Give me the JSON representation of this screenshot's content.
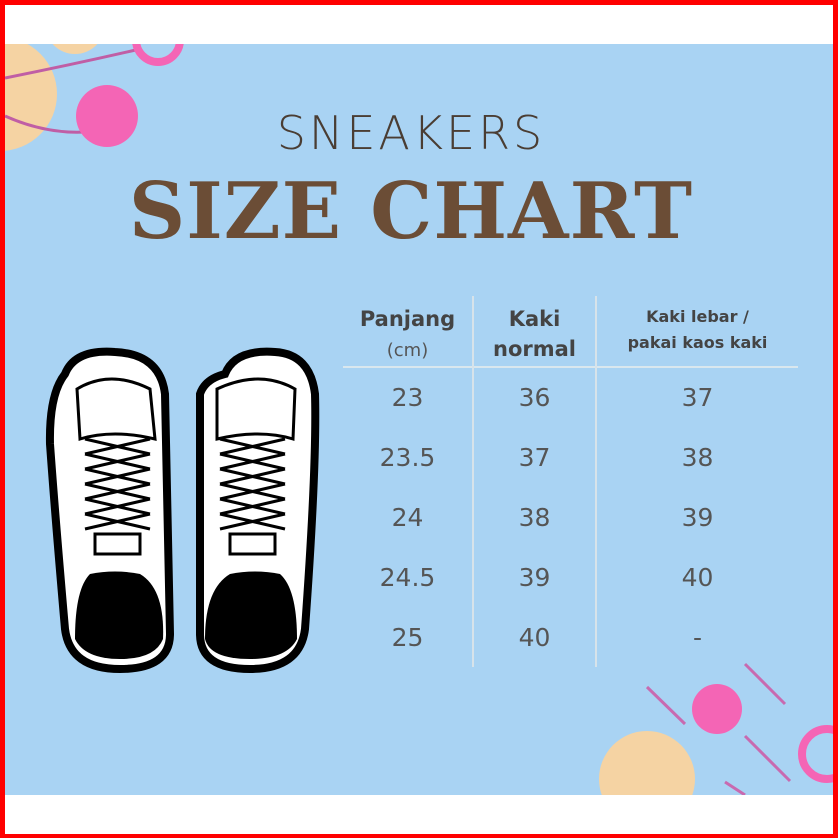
{
  "header": {
    "subtitle": "SNEAKERS",
    "title": "SIZE CHART"
  },
  "table": {
    "headers": [
      {
        "line1": "Panjang",
        "line2": "(cm)"
      },
      {
        "line1": "Kaki",
        "line2": "normal"
      },
      {
        "line1": "Kaki lebar /",
        "line2": "pakai kaos kaki"
      }
    ],
    "rows": [
      [
        "23",
        "36",
        "37"
      ],
      [
        "23.5",
        "37",
        "38"
      ],
      [
        "24",
        "38",
        "39"
      ],
      [
        "24.5",
        "39",
        "40"
      ],
      [
        "25",
        "40",
        "-"
      ]
    ]
  },
  "colors": {
    "background": "#a9d3f3",
    "pink": "#f465b5",
    "peach": "#f5d3a3",
    "title": "#6b4d36",
    "border": "#ff0000"
  },
  "illustration": "sneakers-pair-top-view"
}
